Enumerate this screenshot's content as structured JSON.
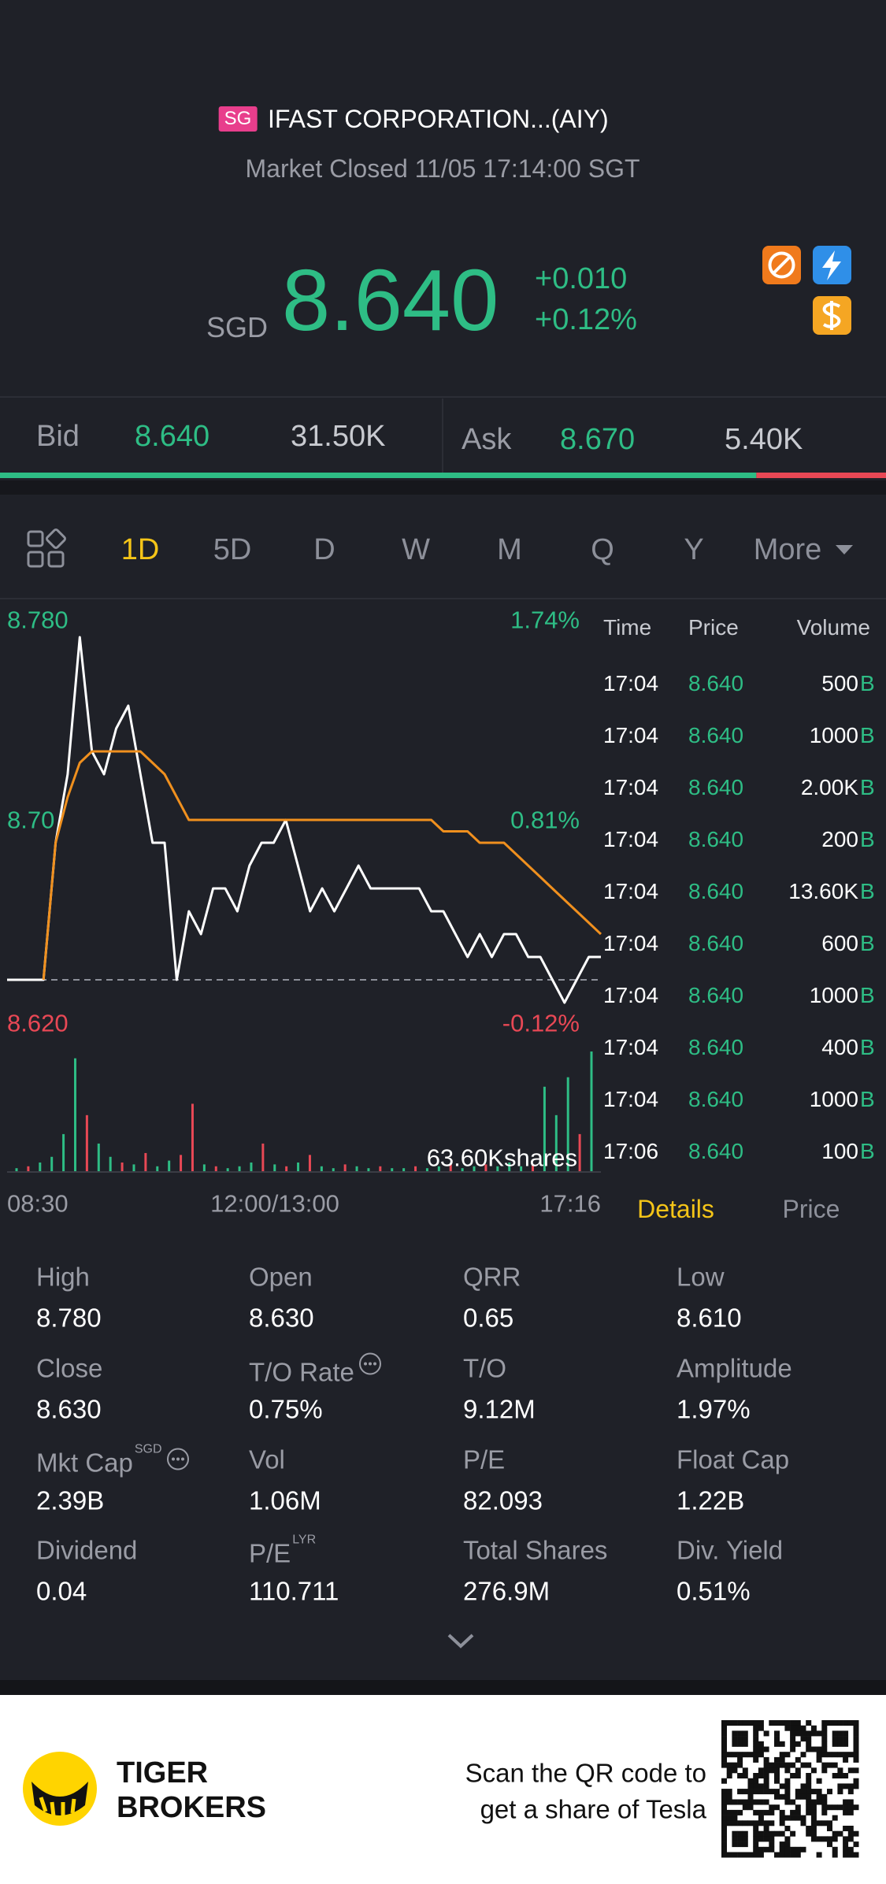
{
  "header": {
    "exchange_badge": "SG",
    "title": "IFAST CORPORATION...(AIY)",
    "status": "Market Closed 11/05 17:14:00 SGT"
  },
  "quote": {
    "currency": "SGD",
    "price": "8.640",
    "change": "+0.010",
    "change_pct": "+0.12%"
  },
  "order_book": {
    "bid_label": "Bid",
    "bid_price": "8.640",
    "bid_size": "31.50K",
    "ask_label": "Ask",
    "ask_price": "8.670",
    "ask_size": "5.40K"
  },
  "tabs": {
    "items": [
      "1D",
      "5D",
      "D",
      "W",
      "M",
      "Q",
      "Y",
      "More"
    ],
    "active": 0
  },
  "chart_data": {
    "type": "line",
    "ylim": [
      8.62,
      8.78
    ],
    "yticks": [
      {
        "value": 8.78,
        "label": "8.780"
      },
      {
        "value": 8.7,
        "label": "8.70"
      },
      {
        "value": 8.62,
        "label": "8.620"
      }
    ],
    "pct_labels": [
      "1.74%",
      "0.81%",
      "-0.12%"
    ],
    "xlabels": [
      "08:30",
      "12:00/13:00",
      "17:16"
    ],
    "series": [
      {
        "color": "#ffffff",
        "values": [
          8.63,
          8.63,
          8.63,
          8.63,
          8.69,
          8.72,
          8.78,
          8.73,
          8.72,
          8.74,
          8.75,
          8.72,
          8.69,
          8.69,
          8.63,
          8.66,
          8.65,
          8.67,
          8.67,
          8.66,
          8.68,
          8.69,
          8.69,
          8.7,
          8.68,
          8.66,
          8.67,
          8.66,
          8.67,
          8.68,
          8.67,
          8.67,
          8.67,
          8.67,
          8.67,
          8.66,
          8.66,
          8.65,
          8.64,
          8.65,
          8.64,
          8.65,
          8.65,
          8.64,
          8.64,
          8.63,
          8.62,
          8.63,
          8.64,
          8.64
        ]
      },
      {
        "color": "#f0901e",
        "values": [
          null,
          null,
          null,
          8.63,
          8.69,
          8.71,
          8.725,
          8.73,
          8.73,
          8.73,
          8.73,
          8.73,
          8.725,
          8.72,
          8.71,
          8.7,
          8.7,
          8.7,
          8.7,
          8.7,
          8.7,
          8.7,
          8.7,
          8.7,
          8.7,
          8.7,
          8.7,
          8.7,
          8.7,
          8.7,
          8.7,
          8.7,
          8.7,
          8.7,
          8.7,
          8.7,
          8.695,
          8.695,
          8.695,
          8.69,
          8.69,
          8.69,
          8.685,
          8.68,
          8.675,
          8.67,
          8.665,
          8.66,
          8.655,
          8.65
        ]
      }
    ],
    "volume": {
      "label": "63.60Kshares",
      "values": [
        2000,
        3000,
        5000,
        8000,
        20000,
        60000,
        30000,
        15000,
        8000,
        5000,
        4000,
        10000,
        3000,
        6000,
        9000,
        36000,
        4000,
        3000,
        2000,
        3000,
        5000,
        15000,
        4000,
        3000,
        5000,
        9000,
        3000,
        2000,
        4000,
        3000,
        2000,
        3000,
        2000,
        2000,
        3000,
        2000,
        3000,
        4000,
        2000,
        3000,
        4000,
        3000,
        5000,
        3000,
        4000,
        45000,
        30000,
        50000,
        20000,
        63600
      ],
      "colors": [
        "#2ebd85",
        "#e84855",
        "#2ebd85",
        "#2ebd85",
        "#2ebd85",
        "#2ebd85",
        "#e84855",
        "#2ebd85",
        "#2ebd85",
        "#e84855",
        "#2ebd85",
        "#e84855",
        "#2ebd85",
        "#2ebd85",
        "#e84855",
        "#e84855",
        "#2ebd85",
        "#e84855",
        "#2ebd85",
        "#2ebd85",
        "#2ebd85",
        "#e84855",
        "#2ebd85",
        "#e84855",
        "#2ebd85",
        "#e84855",
        "#2ebd85",
        "#2ebd85",
        "#e84855",
        "#2ebd85",
        "#2ebd85",
        "#e84855",
        "#2ebd85",
        "#2ebd85",
        "#e84855",
        "#2ebd85",
        "#2ebd85",
        "#e84855",
        "#2ebd85",
        "#2ebd85",
        "#e84855",
        "#2ebd85",
        "#2ebd85",
        "#2ebd85",
        "#e84855",
        "#2ebd85",
        "#2ebd85",
        "#2ebd85",
        "#e84855",
        "#2ebd85"
      ]
    }
  },
  "trades": {
    "headers": [
      "Time",
      "Price",
      "Volume"
    ],
    "rows": [
      [
        "17:04",
        "8.640",
        "500",
        "B"
      ],
      [
        "17:04",
        "8.640",
        "1000",
        "B"
      ],
      [
        "17:04",
        "8.640",
        "2.00K",
        "B"
      ],
      [
        "17:04",
        "8.640",
        "200",
        "B"
      ],
      [
        "17:04",
        "8.640",
        "13.60K",
        "B"
      ],
      [
        "17:04",
        "8.640",
        "600",
        "B"
      ],
      [
        "17:04",
        "8.640",
        "1000",
        "B"
      ],
      [
        "17:04",
        "8.640",
        "400",
        "B"
      ],
      [
        "17:04",
        "8.640",
        "1000",
        "B"
      ],
      [
        "17:06",
        "8.640",
        "100",
        "B"
      ]
    ]
  },
  "detail_tabs": {
    "items": [
      "Details",
      "Price"
    ],
    "active": 0
  },
  "stats": [
    {
      "label": "High",
      "value": "8.780"
    },
    {
      "label": "Open",
      "value": "8.630"
    },
    {
      "label": "QRR",
      "value": "0.65"
    },
    {
      "label": "Low",
      "value": "8.610"
    },
    {
      "label": "Close",
      "value": "8.630"
    },
    {
      "label": "T/O Rate",
      "value": "0.75%",
      "info": true
    },
    {
      "label": "T/O",
      "value": "9.12M"
    },
    {
      "label": "Amplitude",
      "value": "1.97%"
    },
    {
      "label": "Mkt Cap",
      "sup": "SGD",
      "value": "2.39B",
      "info": true
    },
    {
      "label": "Vol",
      "value": "1.06M"
    },
    {
      "label": "P/E",
      "value": "82.093"
    },
    {
      "label": "Float Cap",
      "value": "1.22B"
    },
    {
      "label": "Dividend",
      "value": "0.04"
    },
    {
      "label": "P/E",
      "sup": "LYR",
      "value": "110.711"
    },
    {
      "label": "Total Shares",
      "value": "276.9M"
    },
    {
      "label": "Div. Yield",
      "value": "0.51%"
    }
  ],
  "footer": {
    "brand_line1": "TIGER",
    "brand_line2": "BROKERS",
    "cta_line1": "Scan the QR code to",
    "cta_line2": "get a share of Tesla"
  }
}
